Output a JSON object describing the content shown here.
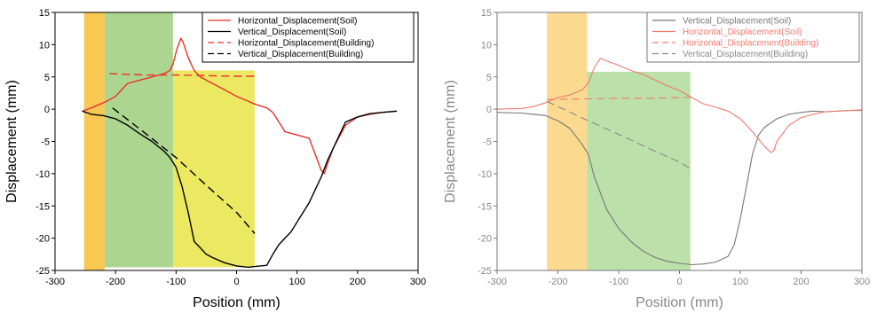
{
  "figure": {
    "charts": [
      {
        "id": "left",
        "faded": false,
        "axis_color": "#000000",
        "text_color": "#000000",
        "xlabel": "Position (mm)",
        "ylabel": "Displacement (mm)",
        "xlim": [
          -300,
          300
        ],
        "ylim": [
          -25,
          15
        ],
        "xticks": [
          -300,
          -200,
          -100,
          0,
          100,
          200,
          300
        ],
        "yticks": [
          15,
          10,
          5,
          0,
          -5,
          -10,
          -15,
          -20,
          -25
        ]
      },
      {
        "id": "right",
        "faded": true,
        "axis_color": "#777777",
        "text_color": "#888888",
        "xlabel": "Position (mm)",
        "ylabel": "Displacement (mm)",
        "xlim": [
          -300,
          300
        ],
        "ylim": [
          -25,
          15
        ],
        "xticks": [
          -300,
          -200,
          -100,
          0,
          100,
          200,
          300
        ],
        "yticks": [
          15,
          10,
          5,
          0,
          -5,
          -10,
          -15,
          -20,
          -25
        ]
      }
    ]
  },
  "chart_data": [
    {
      "type": "line",
      "xlabel": "Position (mm)",
      "ylabel": "Displacement (mm)",
      "xlim": [
        -300,
        300
      ],
      "ylim": [
        -25,
        15
      ],
      "grid": false,
      "legend_position": "top-right",
      "shaded_regions": [
        {
          "x": [
            -252,
            -218
          ],
          "y": [
            -25,
            15
          ],
          "color": "#f9c54a"
        },
        {
          "x": [
            -218,
            -105
          ],
          "y": [
            -24.5,
            15
          ],
          "color": "#a8d48a"
        },
        {
          "x": [
            -105,
            30
          ],
          "y": [
            -24.5,
            6
          ],
          "color": "#ebe75a"
        }
      ],
      "series": [
        {
          "name": "Horizontal_Displacement(Soil)",
          "color": "#e8322a",
          "dash": "solid",
          "x": [
            -255,
            -240,
            -225,
            -215,
            -200,
            -180,
            -160,
            -140,
            -120,
            -110,
            -105,
            -98,
            -92,
            -88,
            -80,
            -70,
            -60,
            -40,
            -20,
            0,
            20,
            30,
            50,
            60,
            80,
            100,
            120,
            130,
            140,
            145,
            150,
            160,
            180,
            200,
            220,
            240,
            265
          ],
          "y": [
            -0.3,
            0.2,
            0.8,
            1.2,
            2.0,
            4.0,
            4.5,
            5.0,
            5.5,
            6.0,
            7.0,
            9.5,
            11.0,
            10.3,
            8.0,
            6.0,
            5.0,
            4.0,
            3.0,
            2.0,
            1.2,
            0.8,
            0.2,
            -0.5,
            -3.5,
            -4.0,
            -4.5,
            -7.0,
            -9.5,
            -10.0,
            -8.5,
            -6.0,
            -2.5,
            -1.2,
            -0.8,
            -0.5,
            -0.3
          ]
        },
        {
          "name": "Vertical_Displacement(Soil)",
          "color": "#000000",
          "dash": "solid",
          "x": [
            -255,
            -240,
            -220,
            -200,
            -180,
            -160,
            -140,
            -120,
            -110,
            -100,
            -90,
            -80,
            -70,
            -60,
            -50,
            -40,
            -20,
            0,
            20,
            30,
            40,
            50,
            60,
            70,
            80,
            90,
            100,
            110,
            120,
            130,
            140,
            150,
            160,
            180,
            200,
            220,
            240,
            265
          ],
          "y": [
            -0.3,
            -0.8,
            -1.0,
            -1.5,
            -2.5,
            -3.8,
            -5.0,
            -6.5,
            -7.5,
            -9.0,
            -12.0,
            -16.0,
            -20.5,
            -21.5,
            -22.5,
            -23.0,
            -23.8,
            -24.3,
            -24.5,
            -24.4,
            -24.3,
            -24.2,
            -22.5,
            -21.0,
            -20.0,
            -19.0,
            -17.5,
            -16.0,
            -14.5,
            -12.5,
            -10.5,
            -8.0,
            -6.0,
            -2.0,
            -1.2,
            -0.7,
            -0.5,
            -0.3
          ]
        },
        {
          "name": "Horizontal_Displacement(Building)",
          "color": "#e8322a",
          "dash": "dashed",
          "x": [
            -210,
            -150,
            -100,
            -50,
            0,
            30
          ],
          "y": [
            5.5,
            5.3,
            5.3,
            5.2,
            5.1,
            5.1
          ]
        },
        {
          "name": "Vertical_Displacement(Building)",
          "color": "#000000",
          "dash": "dashed",
          "x": [
            -205,
            -150,
            -100,
            -50,
            0,
            30
          ],
          "y": [
            0.2,
            -3.8,
            -7.5,
            -11.8,
            -16.0,
            -19.3
          ]
        }
      ]
    },
    {
      "type": "line",
      "xlabel": "Position (mm)",
      "ylabel": "Displacement (mm)",
      "xlim": [
        -300,
        300
      ],
      "ylim": [
        -25,
        15
      ],
      "grid": false,
      "legend_position": "top-right",
      "shaded_regions": [
        {
          "x": [
            -218,
            -152
          ],
          "y": [
            -25,
            15
          ],
          "color": "#fbd889"
        },
        {
          "x": [
            -152,
            18
          ],
          "y": [
            -25,
            5.8
          ],
          "color": "#b8dea4"
        }
      ],
      "series": [
        {
          "name": "Vertical_Displacement(Soil)",
          "color": "#777777",
          "dash": "solid",
          "x": [
            -300,
            -260,
            -240,
            -220,
            -200,
            -180,
            -160,
            -150,
            -140,
            -120,
            -100,
            -80,
            -60,
            -40,
            -20,
            0,
            20,
            40,
            60,
            80,
            90,
            100,
            110,
            120,
            130,
            140,
            160,
            180,
            200,
            220,
            240,
            260,
            280,
            300
          ],
          "y": [
            -0.5,
            -0.6,
            -0.8,
            -1.0,
            -1.8,
            -3.0,
            -5.5,
            -7.0,
            -10.5,
            -15.5,
            -18.5,
            -20.5,
            -22.0,
            -23.0,
            -23.6,
            -23.9,
            -24.1,
            -24.0,
            -23.7,
            -22.8,
            -21.0,
            -17.0,
            -12.0,
            -7.0,
            -4.0,
            -2.8,
            -1.5,
            -0.8,
            -0.5,
            -0.3,
            -0.4,
            -0.3,
            -0.2,
            -0.2
          ]
        },
        {
          "name": "Horizontal_Displacement(Soil)",
          "color": "#ef7a70",
          "dash": "solid",
          "x": [
            -300,
            -260,
            -240,
            -220,
            -200,
            -180,
            -160,
            -150,
            -140,
            -130,
            -120,
            -100,
            -80,
            -60,
            -40,
            -20,
            0,
            20,
            40,
            60,
            80,
            100,
            120,
            140,
            150,
            155,
            160,
            180,
            200,
            220,
            240,
            260,
            280,
            300
          ],
          "y": [
            0.0,
            0.1,
            0.4,
            1.0,
            1.8,
            2.2,
            3.0,
            4.0,
            6.5,
            7.9,
            7.5,
            6.8,
            6.0,
            5.4,
            4.5,
            3.6,
            2.9,
            1.8,
            0.8,
            0.3,
            -0.3,
            -1.5,
            -3.5,
            -5.8,
            -6.7,
            -6.5,
            -5.0,
            -2.5,
            -1.3,
            -0.8,
            -0.4,
            -0.3,
            -0.2,
            -0.1
          ]
        },
        {
          "name": "Horizontal_Displacement(Building)",
          "color": "#ef7a70",
          "dash": "dashed",
          "x": [
            -218,
            -150,
            -100,
            -50,
            0,
            18
          ],
          "y": [
            1.5,
            1.6,
            1.7,
            1.7,
            1.8,
            1.8
          ]
        },
        {
          "name": "Vertical_Displacement(Building)",
          "color": "#888888",
          "dash": "dashed",
          "x": [
            -218,
            -150,
            -100,
            -50,
            0,
            18
          ],
          "y": [
            1.2,
            -1.8,
            -3.9,
            -6.1,
            -8.2,
            -9.2
          ]
        }
      ]
    }
  ]
}
